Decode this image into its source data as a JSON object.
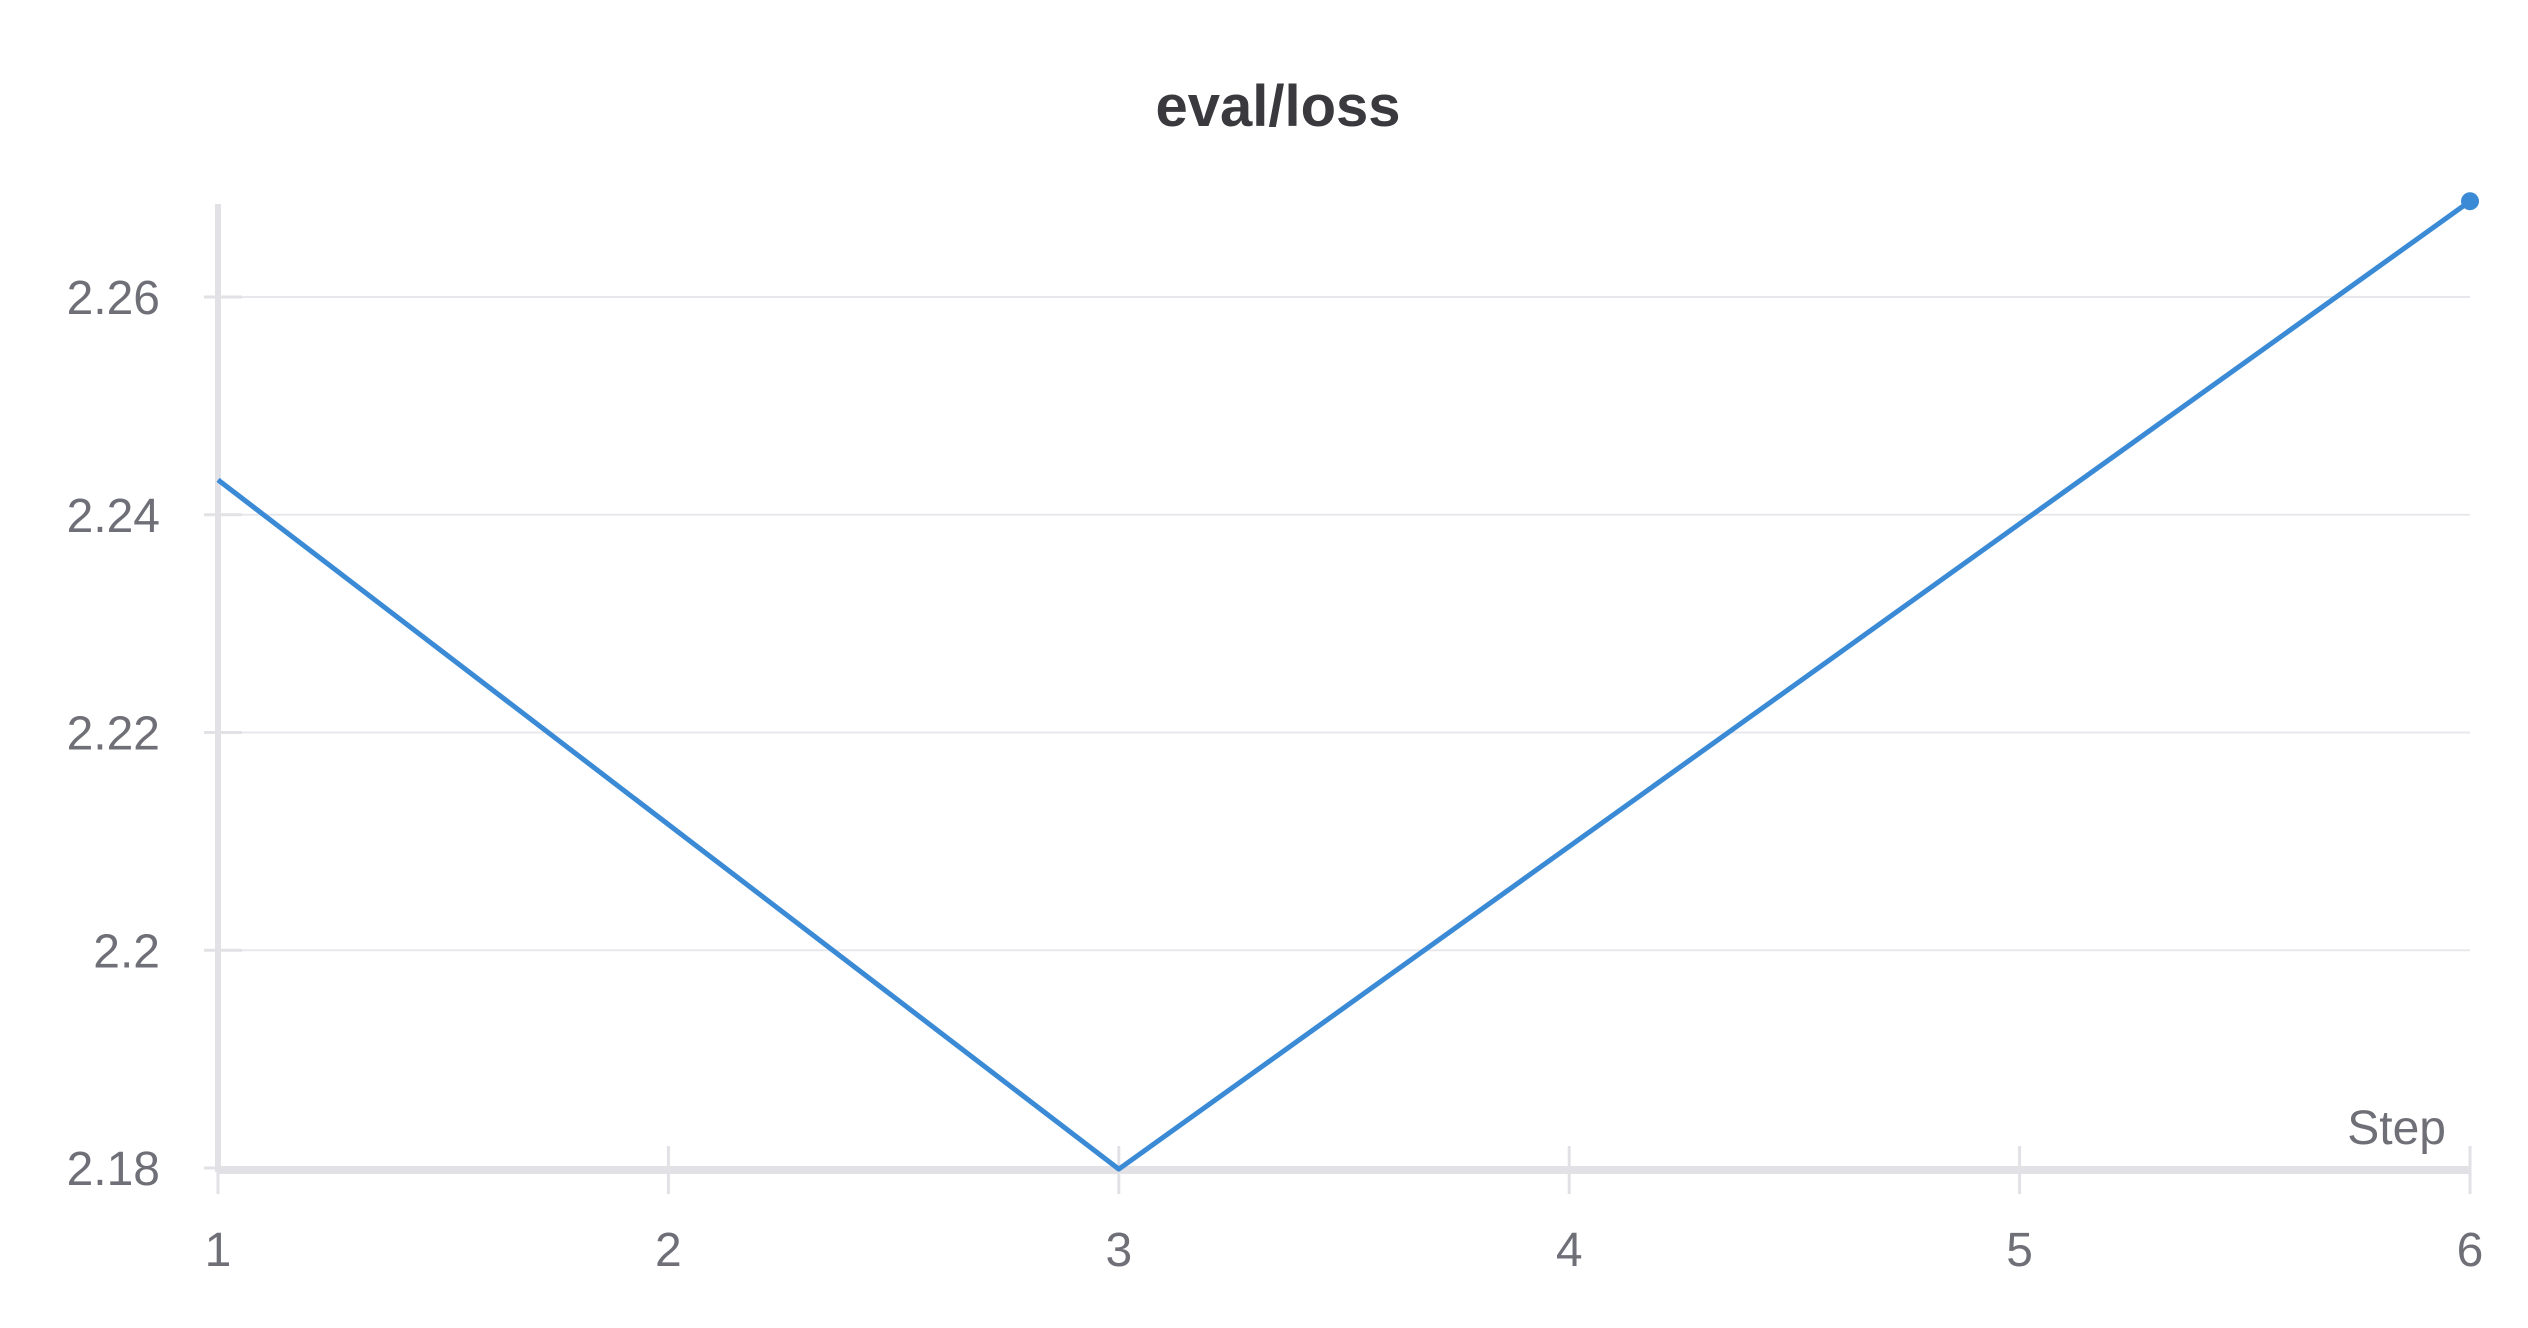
{
  "chart_data": {
    "type": "line",
    "title": "eval/loss",
    "xlabel": "Step",
    "ylabel": "",
    "x": [
      1,
      3,
      6
    ],
    "series": [
      {
        "values": [
          2.2432,
          2.1799,
          2.2688
        ],
        "color": "#3a8ad6"
      }
    ],
    "xlim": [
      1,
      6
    ],
    "ylim": [
      2.18,
      2.2687
    ],
    "x_ticks": [
      "1",
      "2",
      "3",
      "4",
      "5",
      "6"
    ],
    "x_tick_values": [
      1,
      2,
      3,
      4,
      5,
      6
    ],
    "y_ticks": [
      "2.18",
      "2.2",
      "2.22",
      "2.24",
      "2.26"
    ],
    "y_tick_values": [
      2.18,
      2.2,
      2.22,
      2.24,
      2.26
    ],
    "grid": true,
    "legend": "none",
    "end_marker": true
  },
  "colors": {
    "line": "#3a8ad6",
    "grid": "#e8e8ec",
    "axis": "#e2e2e6",
    "text": "#6f6f78",
    "title": "#3a3a3e"
  }
}
